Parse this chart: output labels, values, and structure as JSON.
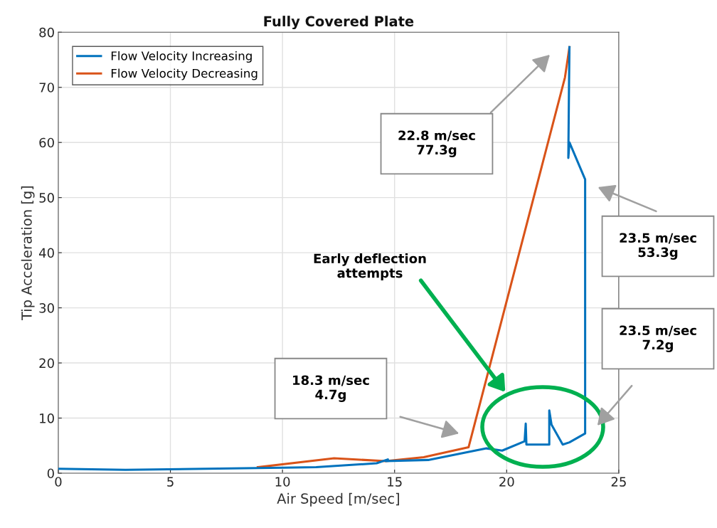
{
  "chart_data": {
    "type": "line",
    "title": "Fully Covered Plate",
    "xlabel": "Air Speed [m/sec]",
    "ylabel": "Tip Acceleration [g]",
    "xlim": [
      0,
      25
    ],
    "ylim": [
      0,
      80
    ],
    "xticks": [
      0,
      5,
      10,
      15,
      20,
      25
    ],
    "yticks": [
      0,
      10,
      20,
      30,
      40,
      50,
      60,
      70,
      80
    ],
    "grid": true,
    "legend": "top left",
    "series": [
      {
        "name": "Flow Velocity Increasing",
        "color": "#0072bd",
        "x": [
          0,
          3,
          10,
          11.5,
          14.2,
          14.7,
          14.6,
          16.5,
          19.1,
          19.8,
          20.8,
          20.85,
          20.88,
          21.9,
          21.9,
          22.0,
          22.5,
          22.8,
          23.5,
          23.5,
          22.8,
          22.75,
          22.78,
          22.8
        ],
        "values": [
          0.8,
          0.6,
          1.0,
          1.1,
          1.8,
          2.5,
          2.2,
          2.4,
          4.5,
          4.1,
          5.8,
          9.0,
          5.2,
          5.2,
          11.4,
          8.8,
          5.2,
          5.6,
          7.2,
          53.3,
          60.0,
          57.2,
          70.0,
          77.3
        ]
      },
      {
        "name": "Flow Velocity Decreasing",
        "color": "#d95319",
        "x": [
          8.9,
          12.3,
          14.6,
          16.3,
          18.3,
          22.6,
          22.8
        ],
        "values": [
          1.1,
          2.7,
          2.2,
          2.9,
          4.7,
          71.8,
          77.3
        ]
      }
    ],
    "annotations": [
      "22.8 m/sec\n77.3g",
      "23.5 m/sec\n53.3g",
      "23.5 m/sec\n7.2g",
      "18.3 m/sec\n4.7g",
      "Early deflection\nattempts"
    ]
  }
}
